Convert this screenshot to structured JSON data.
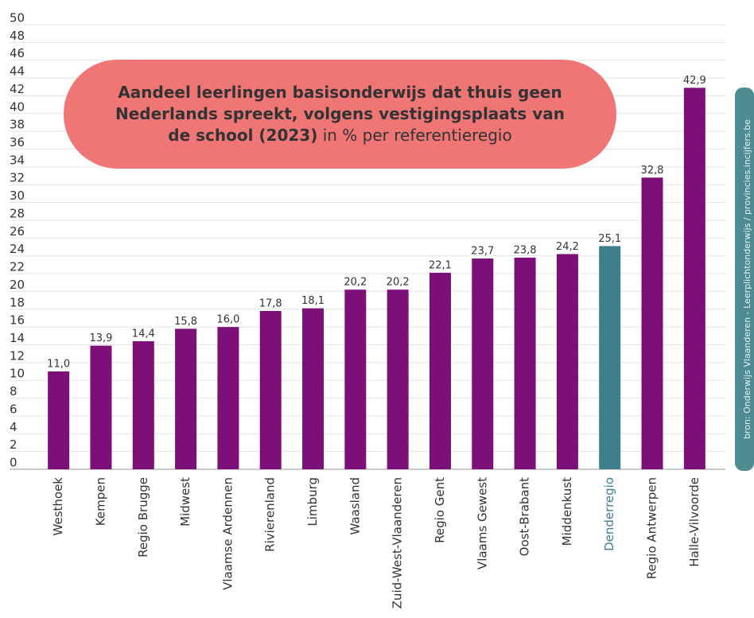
{
  "chart_data": {
    "type": "bar",
    "title": "Aandeel leerlingen basisonderwijs dat thuis geen Nederlands spreekt, volgens vestigingsplaats van de school (2023)",
    "subtitle": "in % per referentieregio",
    "source": "bron: Onderwijs Vlaanderen - Leerplichtonderwijs / provincies.incijfers.be",
    "categories": [
      "Westhoek",
      "Kempen",
      "Regio Brugge",
      "Midwest",
      "Vlaamse Ardennen",
      "Rivierenland",
      "Limburg",
      "Waasland",
      "Zuid-West-Vlaanderen",
      "Regio Gent",
      "Vlaams Gewest",
      "Oost-Brabant",
      "Middenkust",
      "Denderregio",
      "Regio Antwerpen",
      "Halle-Vilvoorde"
    ],
    "values": [
      11.0,
      13.9,
      14.4,
      15.8,
      16.0,
      17.8,
      18.1,
      20.2,
      20.2,
      22.1,
      23.7,
      23.8,
      24.2,
      25.1,
      32.8,
      42.9
    ],
    "value_labels": [
      "11,0",
      "13,9",
      "14,4",
      "15,8",
      "16,0",
      "17,8",
      "18,1",
      "20,2",
      "20,2",
      "22,1",
      "23,7",
      "23,8",
      "24,2",
      "25,1",
      "32,8",
      "42,9"
    ],
    "color": "#7d0f78",
    "colors": [
      "#7d0f78",
      "#7d0f78",
      "#7d0f78",
      "#7d0f78",
      "#7d0f78",
      "#7d0f78",
      "#7d0f78",
      "#7d0f78",
      "#7d0f78",
      "#7d0f78",
      "#7d0f78",
      "#7d0f78",
      "#7d0f78",
      "#3f7f8b",
      "#7d0f78",
      "#7d0f78"
    ],
    "ylim": [
      0,
      50
    ],
    "yticks": [
      0,
      2,
      4,
      6,
      8,
      10,
      12,
      14,
      16,
      18,
      20,
      22,
      24,
      26,
      28,
      30,
      32,
      34,
      36,
      38,
      40,
      42,
      44,
      46,
      48,
      50
    ],
    "grid": true
  }
}
